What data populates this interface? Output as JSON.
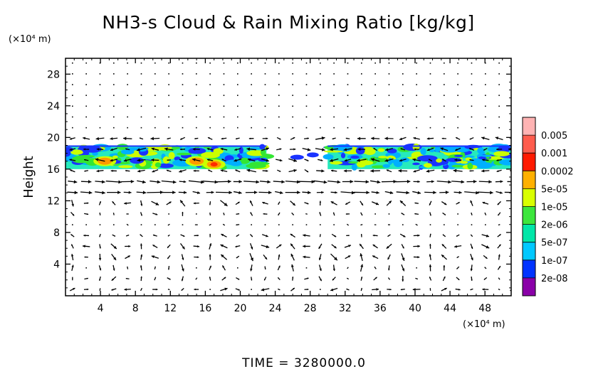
{
  "chart_data": {
    "type": "heatmap",
    "title": "NH3-s Cloud & Rain Mixing Ratio [kg/kg]",
    "ylabel": "Height",
    "y_unit": "(×10⁴ m)",
    "x_unit": "(×10⁴ m)",
    "xlim": [
      0,
      51
    ],
    "ylim": [
      0,
      30
    ],
    "x_ticks": [
      "4",
      "8",
      "12",
      "16",
      "20",
      "24",
      "28",
      "32",
      "36",
      "40",
      "44",
      "48"
    ],
    "x_tick_values": [
      4,
      8,
      12,
      16,
      20,
      24,
      28,
      32,
      36,
      40,
      44,
      48
    ],
    "y_ticks": [
      "4",
      "8",
      "12",
      "16",
      "20",
      "24",
      "28"
    ],
    "y_tick_values": [
      4,
      8,
      12,
      16,
      20,
      24,
      28
    ],
    "colorbar": {
      "labels": [
        "0.005",
        "0.001",
        "0.0002",
        "5e-05",
        "1e-05",
        "2e-06",
        "5e-07",
        "1e-07",
        "2e-08"
      ],
      "colors": [
        "#ff9999",
        "#ff2a00",
        "#ff9900",
        "#ccff00",
        "#33e633",
        "#00e6b0",
        "#00b0ff",
        "#1a33ff",
        "#9900b3"
      ]
    },
    "cloud_layer": [
      {
        "x0": 0.0,
        "x1": 23.0,
        "y_bottom": 16.0,
        "y_top": 19.0
      },
      {
        "x0": 30.0,
        "x1": 51.0,
        "y_bottom": 16.0,
        "y_top": 19.0
      }
    ],
    "peaks": [
      {
        "x": 4.5,
        "y": 17.0,
        "level": "0.0002"
      },
      {
        "x": 17.0,
        "y": 16.6,
        "level": "0.001"
      },
      {
        "x": 15.0,
        "y": 17.0,
        "level": "0.0002"
      }
    ],
    "wind_vectors": "shown",
    "grid": false
  },
  "footer": {
    "time_label": "TIME = 3280000.0"
  }
}
